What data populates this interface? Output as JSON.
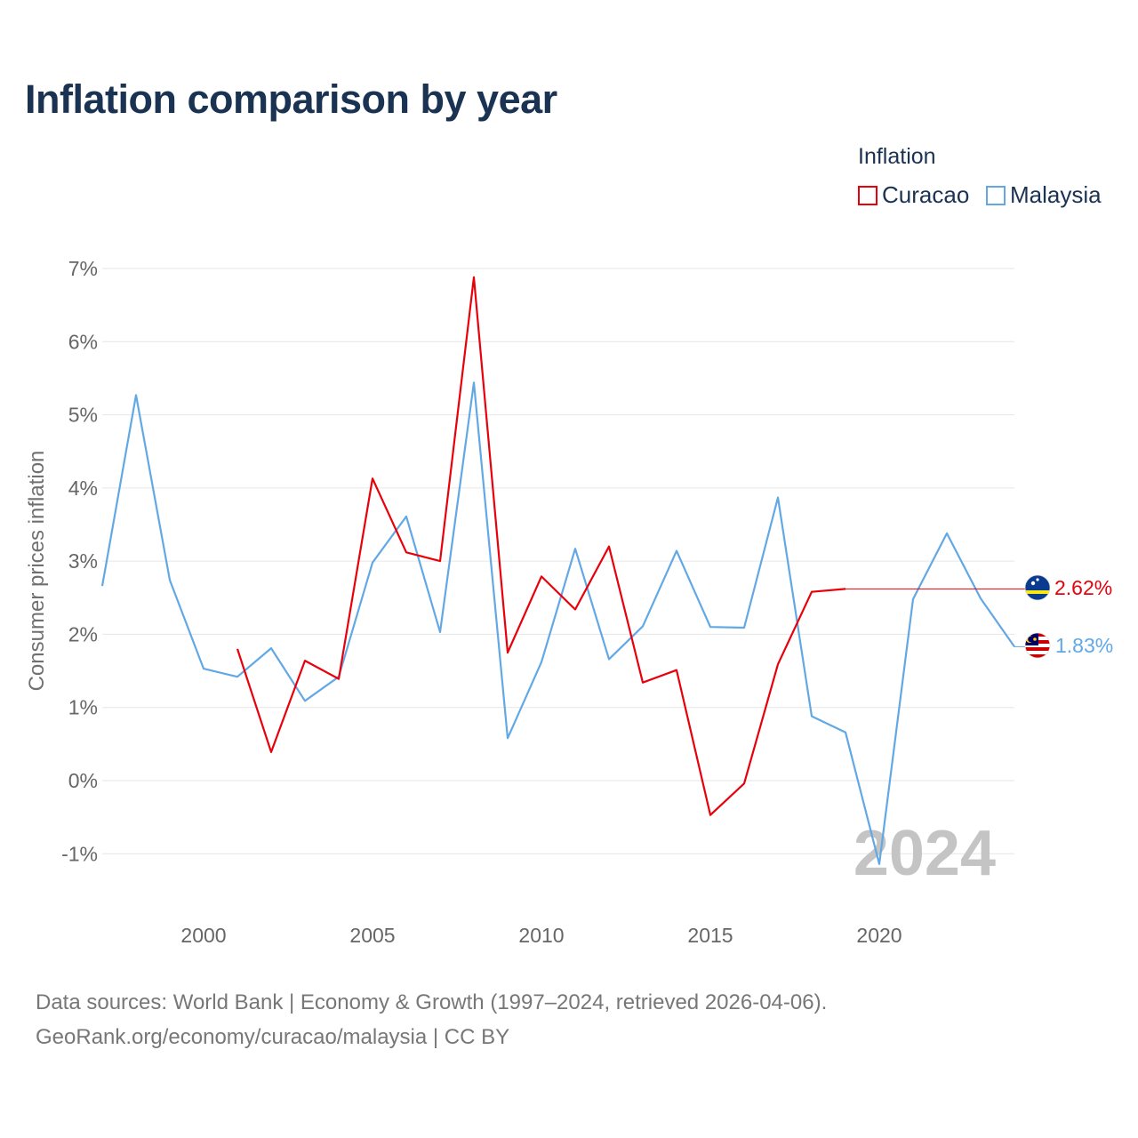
{
  "title": "Inflation comparison by year",
  "legend": {
    "title": "Inflation",
    "items": [
      {
        "label": "Curacao",
        "color": "#e8000b"
      },
      {
        "label": "Malaysia",
        "color": "#62a8e5"
      }
    ]
  },
  "watermark_year": "2024",
  "source": {
    "line1": "Data sources: World Bank | Economy & Growth (1997–2024, retrieved 2026-04-06).",
    "line2": "GeoRank.org/economy/curacao/malaysia | CC BY"
  },
  "chart_data": {
    "type": "line",
    "title": "Inflation comparison by year",
    "xlabel": "",
    "ylabel": "Consumer prices inflation",
    "xlim": [
      1997,
      2024
    ],
    "ylim": [
      -1.7,
      7
    ],
    "x_ticks": [
      2000,
      2005,
      2010,
      2015,
      2020
    ],
    "y_ticks": [
      -1,
      0,
      1,
      2,
      3,
      4,
      5,
      6,
      7
    ],
    "y_tick_labels": [
      "-1%",
      "0%",
      "1%",
      "2%",
      "3%",
      "4%",
      "5%",
      "6%",
      "7%"
    ],
    "grid": true,
    "legend_position": "top-right",
    "series": [
      {
        "name": "Curacao",
        "color": "#e8000b",
        "end_label": "2.62%",
        "end_value": 2.62,
        "icon": "curacao-flag-icon",
        "x": [
          2001,
          2002,
          2003,
          2004,
          2005,
          2006,
          2007,
          2008,
          2009,
          2010,
          2011,
          2012,
          2013,
          2014,
          2015,
          2016,
          2017,
          2018,
          2019
        ],
        "values": [
          1.8,
          0.39,
          1.64,
          1.39,
          4.13,
          3.12,
          3.0,
          6.88,
          1.75,
          2.79,
          2.34,
          3.2,
          1.34,
          1.51,
          -0.47,
          -0.04,
          1.59,
          2.58,
          2.62
        ]
      },
      {
        "name": "Malaysia",
        "color": "#62a8e5",
        "end_label": "1.83%",
        "end_value": 1.83,
        "icon": "malaysia-flag-icon",
        "x": [
          1997,
          1998,
          1999,
          2000,
          2001,
          2002,
          2003,
          2004,
          2005,
          2006,
          2007,
          2008,
          2009,
          2010,
          2011,
          2012,
          2013,
          2014,
          2015,
          2016,
          2017,
          2018,
          2019,
          2020,
          2021,
          2022,
          2023,
          2024
        ],
        "values": [
          2.66,
          5.27,
          2.74,
          1.53,
          1.42,
          1.81,
          1.09,
          1.42,
          2.98,
          3.61,
          2.03,
          5.44,
          0.58,
          1.62,
          3.17,
          1.66,
          2.11,
          3.14,
          2.1,
          2.09,
          3.87,
          0.88,
          0.66,
          -1.14,
          2.48,
          3.38,
          2.49,
          1.83
        ]
      }
    ]
  }
}
